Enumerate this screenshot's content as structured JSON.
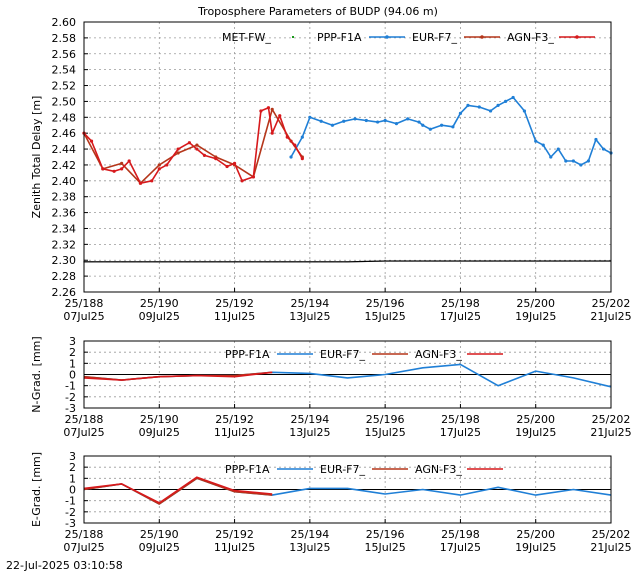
{
  "figure": {
    "title": "Troposphere Parameters of BUDP (94.06 m)",
    "timestamp": "22-Jul-2025 03:10:58"
  },
  "colors": {
    "met": "#1a9a1a",
    "ppp": "#1f7fd6",
    "eur": "#b5361a",
    "agn": "#d7191c",
    "grid": "#9a9a9a"
  },
  "chart_data": [
    {
      "type": "line",
      "ylabel": "Zenith Total Delay [m]",
      "xlabel": "",
      "ylim": [
        2.26,
        2.6
      ],
      "yticks": [
        "2.26",
        "2.28",
        "2.30",
        "2.32",
        "2.34",
        "2.36",
        "2.38",
        "2.40",
        "2.42",
        "2.44",
        "2.46",
        "2.48",
        "2.50",
        "2.52",
        "2.54",
        "2.56",
        "2.58",
        "2.60"
      ],
      "xlim": [
        188,
        202
      ],
      "xticks": [
        {
          "x": 188,
          "doy": "25/188",
          "date": "07Jul25"
        },
        {
          "x": 190,
          "doy": "25/190",
          "date": "09Jul25"
        },
        {
          "x": 192,
          "doy": "25/192",
          "date": "11Jul25"
        },
        {
          "x": 194,
          "doy": "25/194",
          "date": "13Jul25"
        },
        {
          "x": 196,
          "doy": "25/196",
          "date": "15Jul25"
        },
        {
          "x": 198,
          "doy": "25/198",
          "date": "17Jul25"
        },
        {
          "x": 200,
          "doy": "25/200",
          "date": "19Jul25"
        },
        {
          "x": 202,
          "doy": "25/202",
          "date": "21Jul25"
        }
      ],
      "grid": true,
      "legend_position": "top",
      "series": [
        {
          "name": "MET-FW_",
          "style": "points",
          "x": [
            188,
            189,
            190,
            191,
            192,
            193,
            194,
            195,
            196,
            197,
            198,
            199,
            200,
            201,
            202
          ],
          "y": [
            2.298,
            2.298,
            2.298,
            2.298,
            2.298,
            2.298,
            2.298,
            2.298,
            2.299,
            2.299,
            2.299,
            2.299,
            2.299,
            2.299,
            2.299
          ]
        },
        {
          "name": "PPP-F1A",
          "style": "line",
          "x": [
            193.5,
            193.8,
            194.0,
            194.3,
            194.6,
            194.9,
            195.2,
            195.5,
            195.8,
            196.0,
            196.3,
            196.6,
            196.9,
            197.0,
            197.2,
            197.5,
            197.8,
            198.0,
            198.2,
            198.5,
            198.8,
            199.0,
            199.2,
            199.4,
            199.7,
            200.0,
            200.2,
            200.4,
            200.6,
            200.8,
            201.0,
            201.2,
            201.4,
            201.6,
            201.8,
            202.0
          ],
          "y": [
            2.43,
            2.455,
            2.48,
            2.475,
            2.47,
            2.475,
            2.478,
            2.476,
            2.474,
            2.476,
            2.472,
            2.478,
            2.474,
            2.47,
            2.465,
            2.47,
            2.468,
            2.485,
            2.495,
            2.493,
            2.488,
            2.495,
            2.5,
            2.505,
            2.488,
            2.45,
            2.445,
            2.43,
            2.44,
            2.425,
            2.425,
            2.42,
            2.425,
            2.452,
            2.44,
            2.435
          ]
        },
        {
          "name": "EUR-F7_",
          "style": "line",
          "x": [
            188,
            188.5,
            189,
            189.5,
            190,
            190.5,
            191,
            191.5,
            192,
            192.5,
            193,
            193.5,
            193.8
          ],
          "y": [
            2.46,
            2.415,
            2.422,
            2.397,
            2.42,
            2.435,
            2.445,
            2.43,
            2.42,
            2.405,
            2.49,
            2.45,
            2.43
          ]
        },
        {
          "name": "AGN-F3_",
          "style": "line",
          "x": [
            188,
            188.2,
            188.5,
            188.8,
            189,
            189.2,
            189.5,
            189.8,
            190,
            190.2,
            190.5,
            190.8,
            191,
            191.2,
            191.5,
            191.8,
            192,
            192.2,
            192.5,
            192.7,
            192.9,
            193.0,
            193.2,
            193.4,
            193.6,
            193.8
          ],
          "y": [
            2.46,
            2.45,
            2.415,
            2.412,
            2.415,
            2.425,
            2.397,
            2.4,
            2.415,
            2.42,
            2.44,
            2.448,
            2.44,
            2.432,
            2.428,
            2.418,
            2.422,
            2.4,
            2.405,
            2.488,
            2.492,
            2.46,
            2.482,
            2.455,
            2.445,
            2.428
          ]
        }
      ]
    },
    {
      "type": "line",
      "ylabel": "N-Grad. [mm]",
      "xlabel": "",
      "ylim": [
        -3,
        3
      ],
      "yticks": [
        "3",
        "2",
        "1",
        "0",
        "-1",
        "-2",
        "-3"
      ],
      "xlim": [
        188,
        202
      ],
      "grid": true,
      "legend_position": "top",
      "series": [
        {
          "name": "PPP-F1A",
          "style": "line",
          "x": [
            188,
            189,
            190,
            191,
            192,
            193,
            194,
            195,
            196,
            197,
            198,
            199,
            200,
            201,
            202
          ],
          "y": [
            -0.2,
            -0.5,
            -0.2,
            -0.1,
            -0.1,
            0.2,
            0.1,
            -0.3,
            0.0,
            0.6,
            0.9,
            -1.0,
            0.3,
            -0.3,
            -1.1
          ]
        },
        {
          "name": "EUR-F7_",
          "style": "line",
          "x": [
            188,
            189,
            190,
            191,
            192,
            193
          ],
          "y": [
            -0.2,
            -0.5,
            -0.2,
            -0.1,
            -0.1,
            0.2
          ]
        },
        {
          "name": "AGN-F3_",
          "style": "line",
          "x": [
            188,
            189,
            190,
            191,
            192,
            193
          ],
          "y": [
            -0.3,
            -0.5,
            -0.2,
            -0.1,
            -0.2,
            0.2
          ]
        }
      ]
    },
    {
      "type": "line",
      "ylabel": "E-Grad. [mm]",
      "xlabel": "",
      "ylim": [
        -3,
        3
      ],
      "yticks": [
        "3",
        "2",
        "1",
        "0",
        "-1",
        "-2",
        "-3"
      ],
      "xlim": [
        188,
        202
      ],
      "grid": true,
      "legend_position": "top",
      "series": [
        {
          "name": "PPP-F1A",
          "style": "line",
          "x": [
            188,
            189,
            190,
            191,
            192,
            193,
            194,
            195,
            196,
            197,
            198,
            199,
            200,
            201,
            202
          ],
          "y": [
            0.0,
            0.5,
            -1.3,
            1.0,
            -0.2,
            -0.5,
            0.1,
            0.1,
            -0.4,
            0.0,
            -0.5,
            0.2,
            -0.5,
            0.0,
            -0.5
          ]
        },
        {
          "name": "EUR-F7_",
          "style": "line",
          "x": [
            188,
            189,
            190,
            191,
            192,
            193
          ],
          "y": [
            0.0,
            0.5,
            -1.3,
            1.0,
            -0.2,
            -0.5
          ]
        },
        {
          "name": "AGN-F3_",
          "style": "line",
          "x": [
            188,
            189,
            190,
            191,
            192,
            193
          ],
          "y": [
            0.1,
            0.5,
            -1.2,
            1.1,
            -0.1,
            -0.4
          ]
        }
      ]
    }
  ]
}
